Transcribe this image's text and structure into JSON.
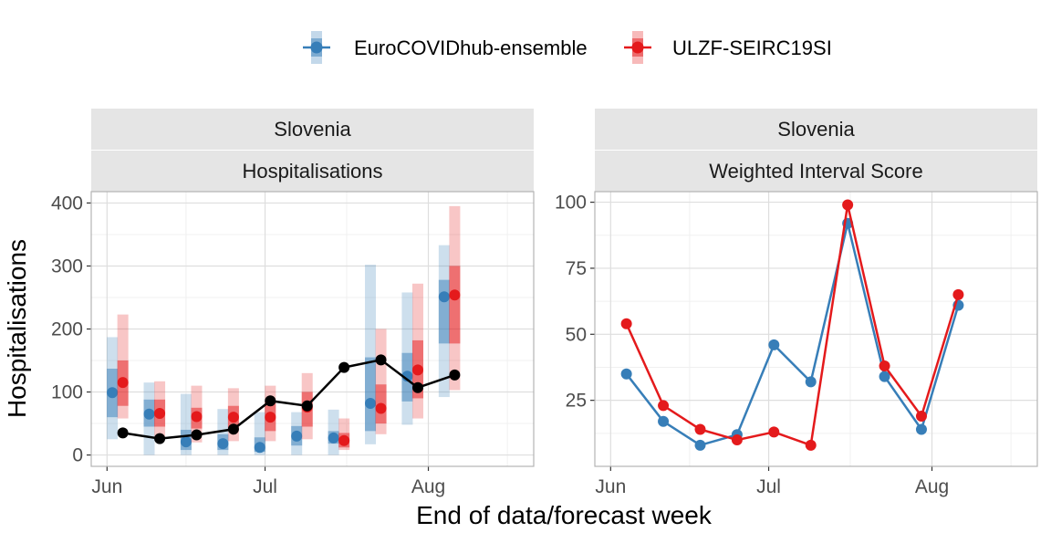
{
  "legend": {
    "items": [
      {
        "name": "EuroCOVIDhub-ensemble",
        "color": "#377EB8"
      },
      {
        "name": "ULZF-SEIRC19SI",
        "color": "#E41A1C"
      }
    ]
  },
  "xlabel": "End of data/forecast week",
  "chart_data": [
    {
      "type": "line",
      "facet_labels": [
        "Slovenia",
        "Hospitalisations"
      ],
      "ylabel": "Hospitalisations",
      "ylim": [
        -18,
        418
      ],
      "yticks": [
        0,
        100,
        200,
        300,
        400
      ],
      "xlim": [
        "2021-05-29",
        "2021-08-21"
      ],
      "xticks": [
        {
          "date": "2021-06-01",
          "label": "Jun"
        },
        {
          "date": "2021-07-01",
          "label": "Jul"
        },
        {
          "date": "2021-08-01",
          "label": "Aug"
        }
      ],
      "grid": true,
      "observed": {
        "dates": [
          "2021-06-04",
          "2021-06-11",
          "2021-06-18",
          "2021-06-25",
          "2021-07-02",
          "2021-07-09",
          "2021-07-16",
          "2021-07-23",
          "2021-07-30",
          "2021-08-06"
        ],
        "values": [
          35,
          26,
          32,
          41,
          86,
          78,
          139,
          151,
          107,
          127
        ]
      },
      "forecasts": [
        {
          "name": "EuroCOVIDhub-ensemble",
          "dates": [
            "2021-06-02",
            "2021-06-09",
            "2021-06-16",
            "2021-06-23",
            "2021-06-30",
            "2021-07-07",
            "2021-07-14",
            "2021-07-21",
            "2021-07-28",
            "2021-08-04"
          ],
          "median": [
            99,
            65,
            21,
            18,
            12,
            30,
            27,
            82,
            125,
            251
          ],
          "inner": [
            [
              60,
              137
            ],
            [
              45,
              88
            ],
            [
              8,
              40
            ],
            [
              8,
              33
            ],
            [
              5,
              28
            ],
            [
              15,
              46
            ],
            [
              18,
              38
            ],
            [
              38,
              155
            ],
            [
              85,
              162
            ],
            [
              177,
              278
            ]
          ],
          "outer": [
            [
              25,
              187
            ],
            [
              0,
              115
            ],
            [
              0,
              97
            ],
            [
              0,
              73
            ],
            [
              0,
              68
            ],
            [
              0,
              68
            ],
            [
              0,
              72
            ],
            [
              17,
              302
            ],
            [
              48,
              258
            ],
            [
              92,
              333
            ]
          ]
        },
        {
          "name": "ULZF-SEIRC19SI",
          "dates": [
            "2021-06-04",
            "2021-06-11",
            "2021-06-18",
            "2021-06-25",
            "2021-07-02",
            "2021-07-09",
            "2021-07-16",
            "2021-07-23",
            "2021-07-30",
            "2021-08-06"
          ],
          "median": [
            115,
            66,
            61,
            60,
            60,
            76,
            23,
            74,
            135,
            254
          ],
          "inner": [
            [
              78,
              150
            ],
            [
              45,
              88
            ],
            [
              42,
              75
            ],
            [
              40,
              78
            ],
            [
              38,
              85
            ],
            [
              45,
              100
            ],
            [
              12,
              35
            ],
            [
              50,
              112
            ],
            [
              90,
              182
            ],
            [
              177,
              300
            ]
          ],
          "outer": [
            [
              58,
              223
            ],
            [
              25,
              117
            ],
            [
              20,
              110
            ],
            [
              22,
              106
            ],
            [
              22,
              110
            ],
            [
              25,
              130
            ],
            [
              8,
              58
            ],
            [
              33,
              200
            ],
            [
              58,
              272
            ],
            [
              103,
              395
            ]
          ]
        }
      ]
    },
    {
      "type": "line",
      "facet_labels": [
        "Slovenia",
        "Weighted Interval Score"
      ],
      "ylabel": "",
      "ylim": [
        0,
        104
      ],
      "yticks": [
        25,
        50,
        75,
        100
      ],
      "xlim": [
        "2021-05-29",
        "2021-08-21"
      ],
      "xticks": [
        {
          "date": "2021-06-01",
          "label": "Jun"
        },
        {
          "date": "2021-07-01",
          "label": "Jul"
        },
        {
          "date": "2021-08-01",
          "label": "Aug"
        }
      ],
      "grid": true,
      "series": [
        {
          "name": "EuroCOVIDhub-ensemble",
          "dates": [
            "2021-06-04",
            "2021-06-11",
            "2021-06-18",
            "2021-06-25",
            "2021-07-02",
            "2021-07-09",
            "2021-07-16",
            "2021-07-23",
            "2021-07-30",
            "2021-08-06"
          ],
          "values": [
            35,
            17,
            8,
            12,
            46,
            32,
            92,
            34,
            14,
            61
          ]
        },
        {
          "name": "ULZF-SEIRC19SI",
          "dates": [
            "2021-06-04",
            "2021-06-11",
            "2021-06-18",
            "2021-06-25",
            "2021-07-02",
            "2021-07-09",
            "2021-07-16",
            "2021-07-23",
            "2021-07-30",
            "2021-08-06"
          ],
          "values": [
            54,
            23,
            14,
            10,
            13,
            8,
            99,
            38,
            19,
            65
          ]
        }
      ]
    }
  ]
}
